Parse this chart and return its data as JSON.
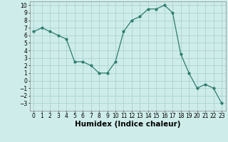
{
  "title": "",
  "xlabel": "Humidex (Indice chaleur)",
  "ylabel": "",
  "x": [
    0,
    1,
    2,
    3,
    4,
    5,
    6,
    7,
    8,
    9,
    10,
    11,
    12,
    13,
    14,
    15,
    16,
    17,
    18,
    19,
    20,
    21,
    22,
    23
  ],
  "y": [
    6.5,
    7.0,
    6.5,
    6.0,
    5.5,
    2.5,
    2.5,
    2.0,
    1.0,
    1.0,
    2.5,
    6.5,
    8.0,
    8.5,
    9.5,
    9.5,
    10.0,
    9.0,
    3.5,
    1.0,
    -1.0,
    -0.5,
    -1.0,
    -3.0
  ],
  "line_color": "#2e7d6e",
  "marker_color": "#2e7d6e",
  "bg_color": "#ceecea",
  "grid_color": "#aad4d0",
  "xlim": [
    -0.5,
    23.5
  ],
  "ylim": [
    -4,
    10.5
  ],
  "yticks": [
    -3,
    -2,
    -1,
    0,
    1,
    2,
    3,
    4,
    5,
    6,
    7,
    8,
    9,
    10
  ],
  "xticks": [
    0,
    1,
    2,
    3,
    4,
    5,
    6,
    7,
    8,
    9,
    10,
    11,
    12,
    13,
    14,
    15,
    16,
    17,
    18,
    19,
    20,
    21,
    22,
    23
  ],
  "tick_fontsize": 5.5,
  "xlabel_fontsize": 7.5
}
